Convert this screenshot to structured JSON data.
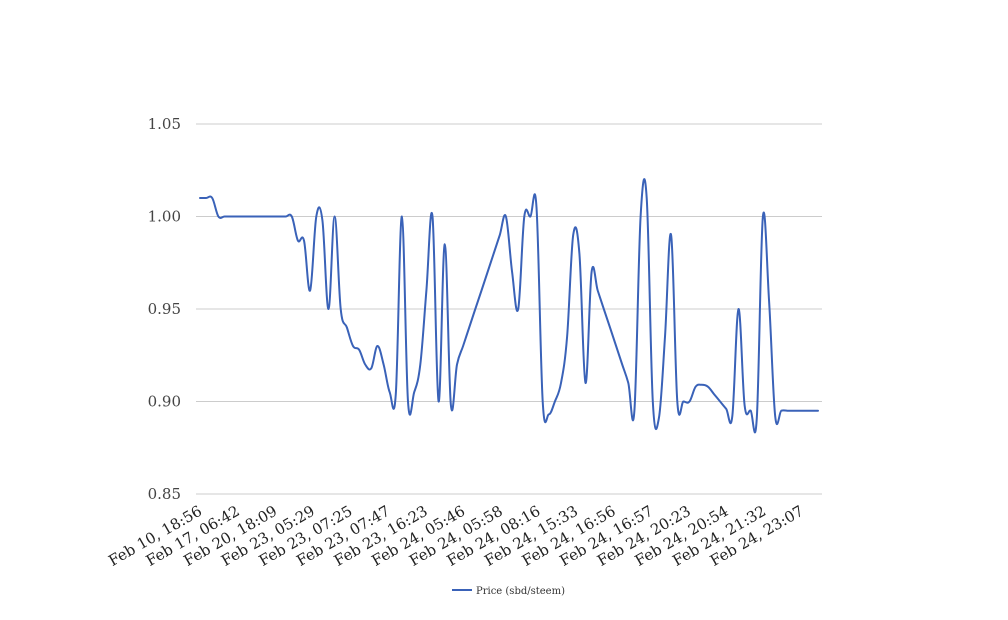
{
  "chart_data": {
    "type": "line",
    "title": "",
    "xlabel": "",
    "ylabel": "",
    "ylim": [
      0.85,
      1.05
    ],
    "yticks": [
      "0.85",
      "0.90",
      "0.95",
      "1.00",
      "1.05"
    ],
    "grid": "horizontal",
    "legend_position": "bottom",
    "x_tick_labels": [
      "Feb 10, 18:56",
      "Feb 17, 06:42",
      "Feb 20, 18:09",
      "Feb 23, 05:29",
      "Feb 23, 07:25",
      "Feb 23, 07:47",
      "Feb 23, 16:23",
      "Feb 24, 05:46",
      "Feb 24, 05:58",
      "Feb 24, 08:16",
      "Feb 24, 15:33",
      "Feb 24, 16:56",
      "Feb 24, 16:57",
      "Feb 24, 20:23",
      "Feb 24, 20:54",
      "Feb 24, 21:32",
      "Feb 24, 23:07"
    ],
    "series": [
      {
        "name": "Price (sbd/steem)",
        "color": "#3a62b8",
        "values": [
          1.01,
          1.01,
          1.01,
          1.0,
          1.0,
          1.0,
          1.0,
          1.0,
          1.0,
          1.0,
          1.0,
          1.0,
          1.0,
          1.0,
          1.0,
          1.0,
          0.987,
          0.987,
          0.96,
          1.0,
          0.998,
          0.95,
          1.0,
          0.95,
          0.94,
          0.93,
          0.928,
          0.92,
          0.918,
          0.93,
          0.92,
          0.905,
          0.904,
          1.0,
          0.9,
          0.905,
          0.92,
          0.96,
          1.0,
          0.9,
          0.985,
          0.898,
          0.92,
          0.93,
          0.94,
          0.95,
          0.96,
          0.97,
          0.98,
          0.99,
          1.0,
          0.97,
          0.95,
          1.0,
          1.0,
          1.005,
          0.9,
          0.893,
          0.9,
          0.91,
          0.935,
          0.99,
          0.98,
          0.91,
          0.97,
          0.96,
          0.95,
          0.94,
          0.93,
          0.92,
          0.91,
          0.895,
          1.0,
          1.01,
          0.9,
          0.891,
          0.935,
          0.99,
          0.9,
          0.9,
          0.9,
          0.908,
          0.909,
          0.908,
          0.904,
          0.9,
          0.896,
          0.892,
          0.95,
          0.898,
          0.895,
          0.891,
          1.0,
          0.955,
          0.892,
          0.895,
          0.895,
          0.895,
          0.895,
          0.895,
          0.895,
          0.895
        ]
      }
    ]
  }
}
